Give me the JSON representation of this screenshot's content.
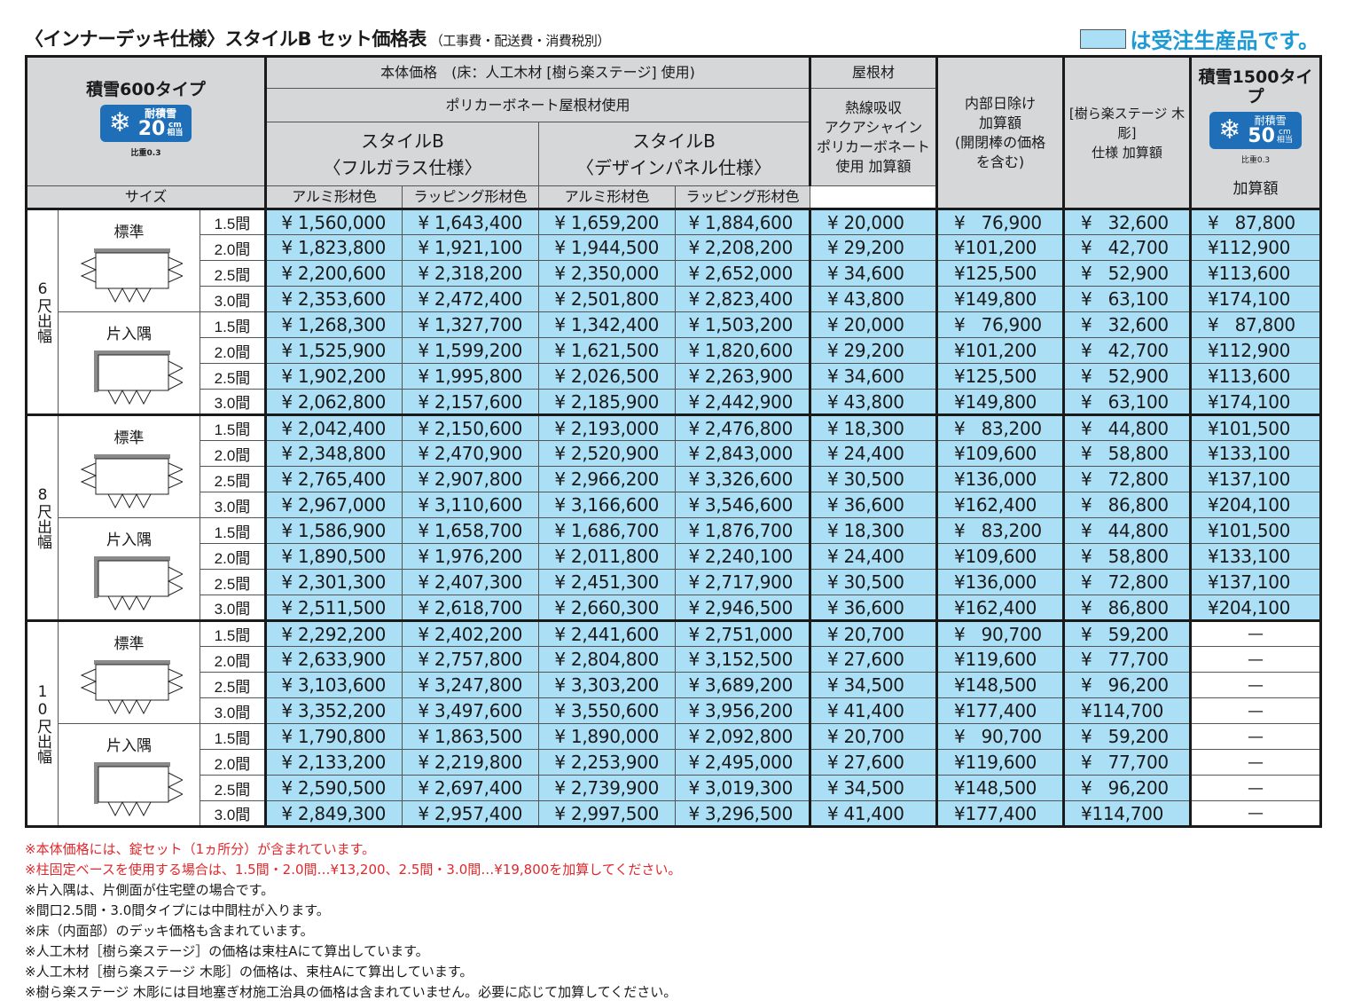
{
  "header": {
    "title": "〈インナーデッキ仕様〉スタイルB セット価格表",
    "subtitle": "（工事費・配送費・消費税別）",
    "legend_text": "は受注生産品です。",
    "legend_color": "#abdff6"
  },
  "table_header": {
    "type_600": "積雪600タイプ",
    "badge_600": {
      "label": "耐積雪",
      "value": "20",
      "unit_top": "cm",
      "unit_bottom": "相当",
      "ratio": "比重0.3"
    },
    "size_label": "サイズ",
    "body_price": "本体価格　(床：人工木材 [樹ら楽ステージ] 使用)",
    "polycarbonate": "ポリカーボネート屋根材使用",
    "style_full_glass": "スタイルB",
    "style_full_glass_sub": "〈フルガラス仕様〉",
    "style_design_panel": "スタイルB",
    "style_design_panel_sub": "〈デザインパネル仕様〉",
    "alumi": "アルミ形材色",
    "wrapping": "ラッピング形材色",
    "roof_material": "屋根材",
    "heat_absorb": "熱線吸収\nアクアシャイン\nポリカーボネート\n使用 加算額",
    "inner_shade": "内部日除け\n加算額\n(開閉棒の価格\nを含む)",
    "mokucho": "[樹ら楽ステージ 木彫]\n仕様 加算額",
    "type_1500": "積雪1500タイプ",
    "badge_1500": {
      "label": "耐積雪",
      "value": "50",
      "unit_top": "cm",
      "unit_bottom": "相当",
      "ratio": "比重0.3"
    },
    "add_amount": "加算額"
  },
  "groups": [
    {
      "depth": "6尺出幅",
      "subgroups": [
        {
          "shape": "標準",
          "rows": [
            {
              "size": "1.5間",
              "v": [
                "¥ 1,560,000",
                "¥ 1,643,400",
                "¥ 1,659,200",
                "¥ 1,884,600",
                "¥ 20,000",
                "¥   76,900",
                "¥   32,600",
                "¥   87,800"
              ]
            },
            {
              "size": "2.0間",
              "v": [
                "¥ 1,823,800",
                "¥ 1,921,100",
                "¥ 1,944,500",
                "¥ 2,208,200",
                "¥ 29,200",
                "¥101,200",
                "¥   42,700",
                "¥112,900"
              ]
            },
            {
              "size": "2.5間",
              "v": [
                "¥ 2,200,600",
                "¥ 2,318,200",
                "¥ 2,350,000",
                "¥ 2,652,000",
                "¥ 34,600",
                "¥125,500",
                "¥   52,900",
                "¥113,600"
              ]
            },
            {
              "size": "3.0間",
              "v": [
                "¥ 2,353,600",
                "¥ 2,472,400",
                "¥ 2,501,800",
                "¥ 2,823,400",
                "¥ 43,800",
                "¥149,800",
                "¥   63,100",
                "¥174,100"
              ]
            }
          ]
        },
        {
          "shape": "片入隅",
          "rows": [
            {
              "size": "1.5間",
              "v": [
                "¥ 1,268,300",
                "¥ 1,327,700",
                "¥ 1,342,400",
                "¥ 1,503,200",
                "¥ 20,000",
                "¥   76,900",
                "¥   32,600",
                "¥   87,800"
              ]
            },
            {
              "size": "2.0間",
              "v": [
                "¥ 1,525,900",
                "¥ 1,599,200",
                "¥ 1,621,500",
                "¥ 1,820,600",
                "¥ 29,200",
                "¥101,200",
                "¥   42,700",
                "¥112,900"
              ]
            },
            {
              "size": "2.5間",
              "v": [
                "¥ 1,902,200",
                "¥ 1,995,800",
                "¥ 2,026,500",
                "¥ 2,263,900",
                "¥ 34,600",
                "¥125,500",
                "¥   52,900",
                "¥113,600"
              ]
            },
            {
              "size": "3.0間",
              "v": [
                "¥ 2,062,800",
                "¥ 2,157,600",
                "¥ 2,185,900",
                "¥ 2,442,900",
                "¥ 43,800",
                "¥149,800",
                "¥   63,100",
                "¥174,100"
              ]
            }
          ]
        }
      ]
    },
    {
      "depth": "8尺出幅",
      "subgroups": [
        {
          "shape": "標準",
          "rows": [
            {
              "size": "1.5間",
              "v": [
                "¥ 2,042,400",
                "¥ 2,150,600",
                "¥ 2,193,000",
                "¥ 2,476,800",
                "¥ 18,300",
                "¥   83,200",
                "¥   44,800",
                "¥101,500"
              ]
            },
            {
              "size": "2.0間",
              "v": [
                "¥ 2,348,800",
                "¥ 2,470,900",
                "¥ 2,520,900",
                "¥ 2,843,000",
                "¥ 24,400",
                "¥109,600",
                "¥   58,800",
                "¥133,100"
              ]
            },
            {
              "size": "2.5間",
              "v": [
                "¥ 2,765,400",
                "¥ 2,907,800",
                "¥ 2,966,200",
                "¥ 3,326,600",
                "¥ 30,500",
                "¥136,000",
                "¥   72,800",
                "¥137,100"
              ]
            },
            {
              "size": "3.0間",
              "v": [
                "¥ 2,967,000",
                "¥ 3,110,600",
                "¥ 3,166,600",
                "¥ 3,546,600",
                "¥ 36,600",
                "¥162,400",
                "¥   86,800",
                "¥204,100"
              ]
            }
          ]
        },
        {
          "shape": "片入隅",
          "rows": [
            {
              "size": "1.5間",
              "v": [
                "¥ 1,586,900",
                "¥ 1,658,700",
                "¥ 1,686,700",
                "¥ 1,876,700",
                "¥ 18,300",
                "¥   83,200",
                "¥   44,800",
                "¥101,500"
              ]
            },
            {
              "size": "2.0間",
              "v": [
                "¥ 1,890,500",
                "¥ 1,976,200",
                "¥ 2,011,800",
                "¥ 2,240,100",
                "¥ 24,400",
                "¥109,600",
                "¥   58,800",
                "¥133,100"
              ]
            },
            {
              "size": "2.5間",
              "v": [
                "¥ 2,301,300",
                "¥ 2,407,300",
                "¥ 2,451,300",
                "¥ 2,717,900",
                "¥ 30,500",
                "¥136,000",
                "¥   72,800",
                "¥137,100"
              ]
            },
            {
              "size": "3.0間",
              "v": [
                "¥ 2,511,500",
                "¥ 2,618,700",
                "¥ 2,660,300",
                "¥ 2,946,500",
                "¥ 36,600",
                "¥162,400",
                "¥   86,800",
                "¥204,100"
              ]
            }
          ]
        }
      ]
    },
    {
      "depth": "10尺出幅",
      "subgroups": [
        {
          "shape": "標準",
          "rows": [
            {
              "size": "1.5間",
              "v": [
                "¥ 2,292,200",
                "¥ 2,402,200",
                "¥ 2,441,600",
                "¥ 2,751,000",
                "¥ 20,700",
                "¥   90,700",
                "¥   59,200",
                "—"
              ]
            },
            {
              "size": "2.0間",
              "v": [
                "¥ 2,633,900",
                "¥ 2,757,800",
                "¥ 2,804,800",
                "¥ 3,152,500",
                "¥ 27,600",
                "¥119,600",
                "¥   77,700",
                "—"
              ]
            },
            {
              "size": "2.5間",
              "v": [
                "¥ 3,103,600",
                "¥ 3,247,800",
                "¥ 3,303,200",
                "¥ 3,689,200",
                "¥ 34,500",
                "¥148,500",
                "¥   96,200",
                "—"
              ]
            },
            {
              "size": "3.0間",
              "v": [
                "¥ 3,352,200",
                "¥ 3,497,600",
                "¥ 3,550,600",
                "¥ 3,956,200",
                "¥ 41,400",
                "¥177,400",
                "¥114,700",
                "—"
              ]
            }
          ]
        },
        {
          "shape": "片入隅",
          "rows": [
            {
              "size": "1.5間",
              "v": [
                "¥ 1,790,800",
                "¥ 1,863,500",
                "¥ 1,890,000",
                "¥ 2,092,800",
                "¥ 20,700",
                "¥   90,700",
                "¥   59,200",
                "—"
              ]
            },
            {
              "size": "2.0間",
              "v": [
                "¥ 2,133,200",
                "¥ 2,219,800",
                "¥ 2,253,900",
                "¥ 2,495,000",
                "¥ 27,600",
                "¥119,600",
                "¥   77,700",
                "—"
              ]
            },
            {
              "size": "2.5間",
              "v": [
                "¥ 2,590,500",
                "¥ 2,697,400",
                "¥ 2,739,900",
                "¥ 3,019,300",
                "¥ 34,500",
                "¥148,500",
                "¥   96,200",
                "—"
              ]
            },
            {
              "size": "3.0間",
              "v": [
                "¥ 2,849,300",
                "¥ 2,957,400",
                "¥ 2,997,500",
                "¥ 3,296,500",
                "¥ 41,400",
                "¥177,400",
                "¥114,700",
                "—"
              ]
            }
          ]
        }
      ]
    }
  ],
  "notes": [
    {
      "text": "※本体価格には、錠セット（1ヵ所分）が含まれています。",
      "red": true
    },
    {
      "text": "※柱固定ベースを使用する場合は、1.5間・2.0間…¥13,200、2.5間・3.0間…¥19,800を加算してください。",
      "red": true
    },
    {
      "text": "※片入隅は、片側面が住宅壁の場合です。",
      "red": false
    },
    {
      "text": "※間口2.5間・3.0間タイプには中間柱が入ります。",
      "red": false
    },
    {
      "text": "※床（内面部）のデッキ価格も含まれています。",
      "red": false
    },
    {
      "text": "※人工木材［樹ら楽ステージ］の価格は束柱Aにて算出しています。",
      "red": false
    },
    {
      "text": "※人工木材［樹ら楽ステージ 木彫］の価格は、束柱Aにて算出しています。",
      "red": false
    },
    {
      "text": "※樹ら楽ステージ 木彫には目地塞ぎ材施工治具の価格は含まれていません。必要に応じて加算してください。",
      "red": false
    }
  ]
}
